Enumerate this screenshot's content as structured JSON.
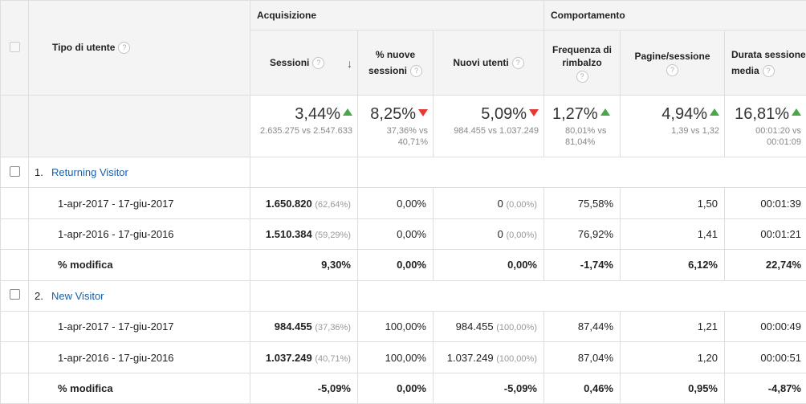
{
  "header": {
    "dimension_label": "Tipo di utente",
    "groups": {
      "acquisition": "Acquisizione",
      "behavior": "Comportamento"
    },
    "columns": {
      "sessions": "Sessioni",
      "new_sessions_1": "% nuove",
      "new_sessions_2": "sessioni",
      "new_users": "Nuovi utenti",
      "bounce_1": "Frequenza di",
      "bounce_2": "rimbalzo",
      "pages": "Pagine/sessione",
      "duration_1": "Durata sessione",
      "duration_2": "media"
    },
    "help_glyph": "?",
    "sort_glyph": "↓",
    "sort_icon": "sort-descending-icon",
    "help_icon": "help-circle-icon"
  },
  "totals": {
    "sessions": {
      "pct": "3,44%",
      "trend": "up",
      "sub": "2.635.275 vs 2.547.633"
    },
    "new_sessions": {
      "pct": "8,25%",
      "trend": "down",
      "sub": "37,36% vs 40,71%"
    },
    "new_users": {
      "pct": "5,09%",
      "trend": "down",
      "sub": "984.455 vs 1.037.249"
    },
    "bounce": {
      "pct": "1,27%",
      "trend": "up",
      "sub": "80,01% vs 81,04%"
    },
    "pages": {
      "pct": "4,94%",
      "trend": "up",
      "sub": "1,39 vs 1,32"
    },
    "duration": {
      "pct": "16,81%",
      "trend": "up",
      "sub": "00:01:20 vs 00:01:09"
    }
  },
  "groups": [
    {
      "index": "1.",
      "name": "Returning Visitor",
      "rows": [
        {
          "label": "1-apr-2017 - 17-giu-2017",
          "sessions": "1.650.820",
          "sessions_share": "(62,64%)",
          "new_sessions": "0,00%",
          "new_users": "0",
          "new_users_share": "(0,00%)",
          "bounce": "75,58%",
          "pages": "1,50",
          "duration": "00:01:39"
        },
        {
          "label": "1-apr-2016 - 17-giu-2016",
          "sessions": "1.510.384",
          "sessions_share": "(59,29%)",
          "new_sessions": "0,00%",
          "new_users": "0",
          "new_users_share": "(0,00%)",
          "bounce": "76,92%",
          "pages": "1,41",
          "duration": "00:01:21"
        }
      ],
      "change": {
        "label": "% modifica",
        "sessions": "9,30%",
        "new_sessions": "0,00%",
        "new_users": "0,00%",
        "bounce": "-1,74%",
        "pages": "6,12%",
        "duration": "22,74%"
      }
    },
    {
      "index": "2.",
      "name": "New Visitor",
      "rows": [
        {
          "label": "1-apr-2017 - 17-giu-2017",
          "sessions": "984.455",
          "sessions_share": "(37,36%)",
          "new_sessions": "100,00%",
          "new_users": "984.455",
          "new_users_share": "(100,00%)",
          "bounce": "87,44%",
          "pages": "1,21",
          "duration": "00:00:49"
        },
        {
          "label": "1-apr-2016 - 17-giu-2016",
          "sessions": "1.037.249",
          "sessions_share": "(40,71%)",
          "new_sessions": "100,00%",
          "new_users": "1.037.249",
          "new_users_share": "(100,00%)",
          "bounce": "87,04%",
          "pages": "1,20",
          "duration": "00:00:51"
        }
      ],
      "change": {
        "label": "% modifica",
        "sessions": "-5,09%",
        "new_sessions": "0,00%",
        "new_users": "-5,09%",
        "bounce": "0,46%",
        "pages": "0,95%",
        "duration": "-4,87%"
      }
    }
  ],
  "colors": {
    "trend_up": "#4aa64a",
    "trend_down": "#e53935",
    "link": "#1a5fa8",
    "header_bg": "#f4f4f4"
  }
}
